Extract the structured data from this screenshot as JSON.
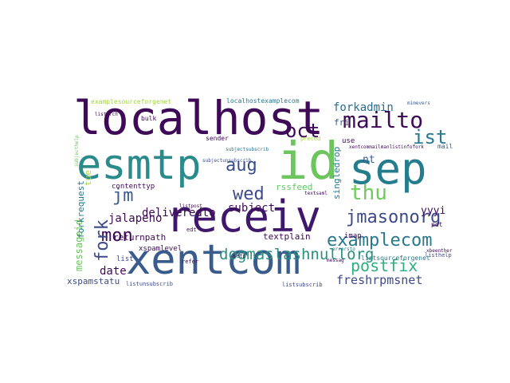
{
  "wordcloud": {
    "words": [
      {
        "text": "localhost",
        "color": "#3e0a57"
      },
      {
        "text": "receiv",
        "color": "#40186b"
      },
      {
        "text": "xentcom",
        "color": "#3a5c8d"
      },
      {
        "text": "esmtp",
        "color": "#2a8a8c"
      },
      {
        "text": "id",
        "color": "#6dc55d"
      },
      {
        "text": "sep",
        "color": "#257c8d"
      },
      {
        "text": "mailto",
        "color": "#3e0a57"
      },
      {
        "text": "oct",
        "color": "#3e0a57"
      },
      {
        "text": "aug",
        "color": "#3a4e8e"
      },
      {
        "text": "jm",
        "color": "#3a5c8d"
      },
      {
        "text": "wed",
        "color": "#3e4a89"
      },
      {
        "text": "mon",
        "color": "#3e0a57"
      },
      {
        "text": "fork",
        "color": "#3e4a89"
      },
      {
        "text": "thu",
        "color": "#6ecd5a"
      },
      {
        "text": "ist",
        "color": "#2a788e"
      },
      {
        "text": "jmasonorg",
        "color": "#3e4a89"
      },
      {
        "text": "examplecom",
        "color": "#2a788e"
      },
      {
        "text": "postfix",
        "color": "#2cb07f"
      },
      {
        "text": "forkadmin",
        "color": "#2a6c8e"
      },
      {
        "text": "dogmaslashnullorg",
        "color": "#27917e"
      },
      {
        "text": "freshrpmsnet",
        "color": "#3e4a89"
      },
      {
        "text": "subject",
        "color": "#3e0a57"
      },
      {
        "text": "deliveredto",
        "color": "#3e0a57"
      },
      {
        "text": "jalapeno",
        "color": "#3e0a57"
      },
      {
        "text": "date",
        "color": "#3e0a57"
      },
      {
        "text": "tue",
        "color": "#a5d440"
      },
      {
        "text": "yyyi",
        "color": "#3e0a57"
      },
      {
        "text": "nt",
        "color": "#3a5c8d"
      },
      {
        "text": "fri",
        "color": "#3a5c8d"
      },
      {
        "text": "singledrop",
        "color": "#2a788e"
      },
      {
        "text": "rssfeed",
        "color": "#5ec962"
      },
      {
        "text": "returnpath",
        "color": "#3e0a57"
      },
      {
        "text": "textplain",
        "color": "#3e0a57"
      },
      {
        "text": "messageid",
        "color": "#6dc55d"
      },
      {
        "text": "forkrequest",
        "color": "#2a788e"
      },
      {
        "text": "xspamstatu",
        "color": "#3e4a89"
      },
      {
        "text": "xspamlevel",
        "color": "#3e0a57"
      },
      {
        "text": "contenttyp",
        "color": "#3e0a57"
      },
      {
        "text": "examplesourceforgenet",
        "color": "#a5d440"
      },
      {
        "text": "localhostexamplecom",
        "color": "#2a788e"
      },
      {
        "text": "list",
        "color": "#3e4a89"
      },
      {
        "text": "imap",
        "color": "#3e0a57"
      },
      {
        "text": "listsourceforgenet",
        "color": "#2a788e"
      },
      {
        "text": "listunsubscrib",
        "color": "#3e4a89"
      },
      {
        "text": "listsubscrib",
        "color": "#3e4a89"
      },
      {
        "text": "mail",
        "color": "#3a5c8d"
      },
      {
        "text": "use",
        "color": "#3e0a57"
      },
      {
        "text": "pdt",
        "color": "#3e0a57"
      },
      {
        "text": "sender",
        "color": "#3e0a57"
      },
      {
        "text": "bulk",
        "color": "#3e0a57"
      },
      {
        "text": "edt",
        "color": "#3e0a57"
      },
      {
        "text": "refer",
        "color": "#3e0a57"
      },
      {
        "text": "setp",
        "color": "#3e0a57"
      },
      {
        "text": "preced",
        "color": "#a5d440"
      },
      {
        "text": "listhelp",
        "color": "#3e4a89"
      },
      {
        "text": "xbeenther",
        "color": "#3e0a57"
      },
      {
        "text": "messag",
        "color": "#3e0a57"
      },
      {
        "text": "listpost",
        "color": "#3e0a57"
      },
      {
        "text": "subjectunsubscrib",
        "color": "#3e4a89"
      },
      {
        "text": "subjectsubscrib",
        "color": "#2a788e"
      },
      {
        "text": "xentcommailmanlistinfofork",
        "color": "#3e0a57"
      },
      {
        "text": "subjecthelp",
        "color": "#6dc55d"
      },
      {
        "text": "listarch",
        "color": "#3e0a57"
      },
      {
        "text": "mimevers",
        "color": "#3a5c8d"
      },
      {
        "text": "errorsto",
        "color": "#2a788e"
      },
      {
        "text": "textsaml",
        "color": "#3e0a57"
      }
    ]
  }
}
